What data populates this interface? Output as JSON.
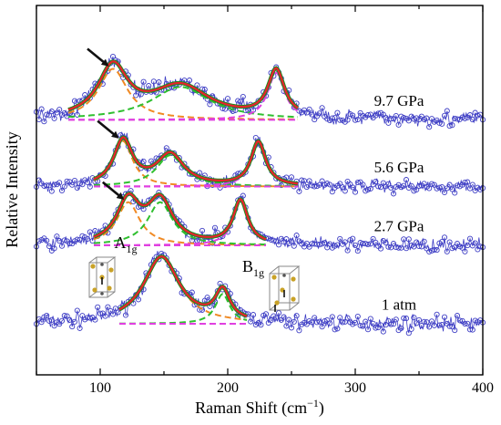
{
  "chart_data": {
    "type": "line",
    "xlabel": "Raman Shift (cm",
    "xlabel_sup": "−1",
    "xlabel_end": ")",
    "ylabel": "Relative Intensity",
    "xlim": [
      50,
      400
    ],
    "x_ticks": [
      100,
      200,
      300,
      400
    ],
    "y_units": "relative (curves vertically offset)",
    "colors": {
      "data": "#3d3dc4",
      "fit_total": "#e8222d",
      "fit_low": "#f08a24",
      "fit_mid": "#2fbf2f",
      "fit_high": "#e040e0",
      "overall": "#1d8a1d",
      "arrow": "#111111"
    },
    "mode_labels": [
      {
        "main": "A",
        "sub": "1g",
        "x_at": 120
      },
      {
        "main": "B",
        "sub": "1g",
        "x_at": 220
      }
    ],
    "series": [
      {
        "name": "1 atm",
        "offset": 0.0,
        "noise": 0.07,
        "fit_range": [
          115,
          215
        ],
        "arrow": false,
        "peaks": [
          {
            "center": 148,
            "amplitude": 0.85,
            "width": 17,
            "fit_color": "orange"
          },
          {
            "center": 196,
            "amplitude": 0.38,
            "width": 7,
            "fit_color": "green"
          }
        ]
      },
      {
        "name": "2.7 GPa",
        "offset": 1.0,
        "noise": 0.06,
        "fit_range": [
          95,
          230
        ],
        "arrow": true,
        "peaks": [
          {
            "center": 122,
            "amplitude": 0.55,
            "width": 11,
            "fit_color": "orange"
          },
          {
            "center": 147,
            "amplitude": 0.55,
            "width": 12,
            "fit_color": "green"
          },
          {
            "center": 210,
            "amplitude": 0.56,
            "width": 7,
            "fit_color": "magenta"
          }
        ]
      },
      {
        "name": "5.6 GPa",
        "offset": 1.75,
        "noise": 0.06,
        "fit_range": [
          95,
          255
        ],
        "arrow": true,
        "peaks": [
          {
            "center": 118,
            "amplitude": 0.58,
            "width": 9,
            "fit_color": "orange"
          },
          {
            "center": 155,
            "amplitude": 0.4,
            "width": 13,
            "fit_color": "green"
          },
          {
            "center": 224,
            "amplitude": 0.56,
            "width": 7,
            "fit_color": "magenta"
          }
        ]
      },
      {
        "name": "9.7 GPa",
        "offset": 2.6,
        "noise": 0.07,
        "fit_range": [
          75,
          255
        ],
        "arrow": true,
        "peaks": [
          {
            "center": 110,
            "amplitude": 0.65,
            "width": 14,
            "fit_color": "orange"
          },
          {
            "center": 163,
            "amplitude": 0.42,
            "width": 28,
            "fit_color": "green"
          },
          {
            "center": 238,
            "amplitude": 0.6,
            "width": 8,
            "fit_color": "magenta"
          }
        ]
      }
    ]
  }
}
